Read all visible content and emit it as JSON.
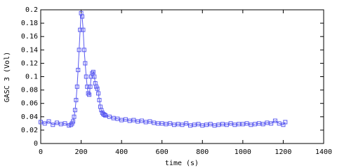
{
  "chart_data": {
    "type": "line",
    "xlabel": "time (s)",
    "ylabel": "GASC 3 (Vol)",
    "xlim": [
      0,
      1400
    ],
    "xticks": [
      0,
      200,
      400,
      600,
      800,
      1000,
      1200,
      1400
    ],
    "ylim": [
      0,
      0.2
    ],
    "yticks": [
      0,
      0.02,
      0.04,
      0.06,
      0.08,
      0.1,
      0.12,
      0.14,
      0.16,
      0.18,
      0.2
    ],
    "series": [
      {
        "color": "#5b5bf0",
        "x": [
          0,
          20,
          40,
          60,
          80,
          100,
          120,
          140,
          150,
          155,
          160,
          165,
          170,
          175,
          180,
          185,
          190,
          195,
          200,
          205,
          210,
          215,
          220,
          225,
          230,
          235,
          240,
          245,
          250,
          255,
          260,
          265,
          270,
          275,
          280,
          285,
          290,
          295,
          300,
          305,
          310,
          315,
          320,
          340,
          360,
          380,
          400,
          420,
          440,
          460,
          480,
          500,
          520,
          540,
          560,
          580,
          600,
          620,
          640,
          660,
          680,
          700,
          720,
          740,
          760,
          780,
          800,
          820,
          840,
          860,
          880,
          900,
          920,
          940,
          960,
          980,
          1000,
          1020,
          1040,
          1060,
          1080,
          1100,
          1120,
          1140,
          1160,
          1180,
          1200,
          1210
        ],
        "values": [
          0.032,
          0.03,
          0.033,
          0.028,
          0.031,
          0.029,
          0.03,
          0.027,
          0.028,
          0.03,
          0.033,
          0.04,
          0.05,
          0.065,
          0.085,
          0.11,
          0.14,
          0.17,
          0.195,
          0.19,
          0.17,
          0.14,
          0.12,
          0.1,
          0.085,
          0.075,
          0.073,
          0.085,
          0.1,
          0.105,
          0.107,
          0.1,
          0.09,
          0.085,
          0.082,
          0.075,
          0.065,
          0.055,
          0.05,
          0.046,
          0.044,
          0.043,
          0.042,
          0.04,
          0.038,
          0.037,
          0.035,
          0.036,
          0.034,
          0.035,
          0.033,
          0.034,
          0.032,
          0.033,
          0.031,
          0.03,
          0.03,
          0.029,
          0.03,
          0.028,
          0.029,
          0.028,
          0.03,
          0.027,
          0.028,
          0.029,
          0.027,
          0.028,
          0.029,
          0.027,
          0.028,
          0.029,
          0.028,
          0.03,
          0.028,
          0.029,
          0.029,
          0.03,
          0.028,
          0.029,
          0.03,
          0.029,
          0.031,
          0.03,
          0.034,
          0.03,
          0.028,
          0.032
        ]
      }
    ]
  }
}
